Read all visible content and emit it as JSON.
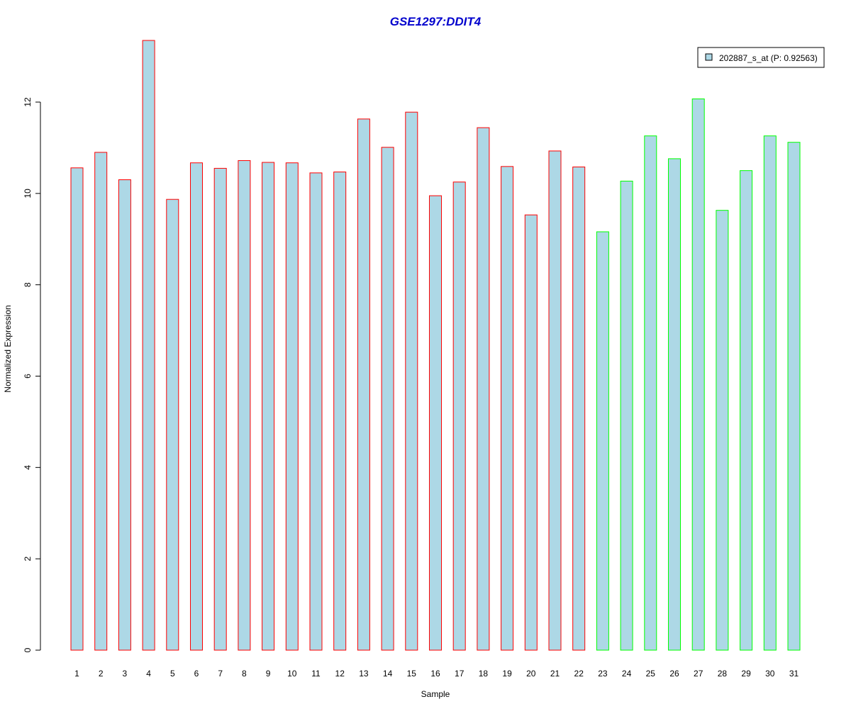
{
  "chart_data": {
    "type": "bar",
    "title": "GSE1297:DDIT4",
    "xlabel": "Sample",
    "ylabel": "Normalized Expression",
    "ylim": [
      0,
      13.4
    ],
    "yticks": [
      0,
      2,
      4,
      6,
      8,
      10,
      12
    ],
    "categories": [
      "1",
      "2",
      "3",
      "4",
      "5",
      "6",
      "7",
      "8",
      "9",
      "10",
      "11",
      "12",
      "13",
      "14",
      "15",
      "16",
      "17",
      "18",
      "19",
      "20",
      "21",
      "22",
      "23",
      "24",
      "25",
      "26",
      "27",
      "28",
      "29",
      "30",
      "31"
    ],
    "series": [
      {
        "name": "202887_s_at (P: 0.92563)",
        "values": [
          10.56,
          10.9,
          10.3,
          13.35,
          9.87,
          10.67,
          10.55,
          10.72,
          10.68,
          10.67,
          10.45,
          10.47,
          11.63,
          11.01,
          11.78,
          9.95,
          10.25,
          11.44,
          10.59,
          9.53,
          10.93,
          10.58,
          9.16,
          10.27,
          11.26,
          10.76,
          12.07,
          9.63,
          10.5,
          11.26,
          11.12
        ]
      }
    ],
    "groups": [
      "red",
      "red",
      "red",
      "red",
      "red",
      "red",
      "red",
      "red",
      "red",
      "red",
      "red",
      "red",
      "red",
      "red",
      "red",
      "red",
      "red",
      "red",
      "red",
      "red",
      "red",
      "red",
      "green",
      "green",
      "green",
      "green",
      "green",
      "green",
      "green",
      "green",
      "green"
    ],
    "legend": {
      "placement": "top-right",
      "entries": [
        "202887_s_at (P: 0.92563)"
      ]
    },
    "grid": false,
    "colors": {
      "bar_fill": "#add8e6",
      "group_red_border": "#ff0000",
      "group_green_border": "#00ff00",
      "title": "#0000cd",
      "axis": "#000000"
    }
  }
}
